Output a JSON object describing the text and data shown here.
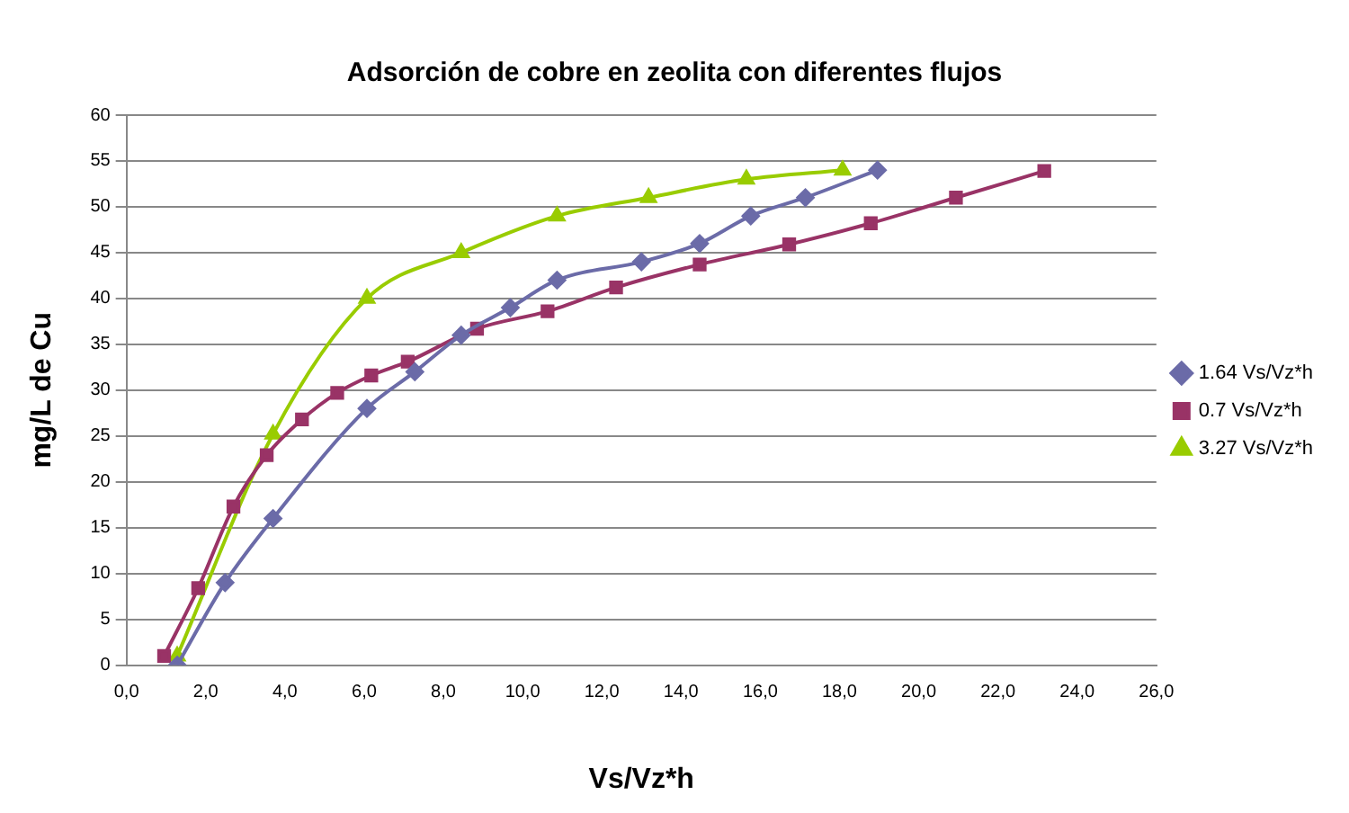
{
  "chart_data": {
    "type": "line",
    "title": "Adsorción de cobre en zeolita con diferentes flujos",
    "xlabel": "Vs/Vz*h",
    "ylabel": "mg/L de Cu",
    "xlim": [
      0,
      26
    ],
    "xticks": [
      {
        "value": 0,
        "label": "0,0"
      },
      {
        "value": 2,
        "label": "2,0"
      },
      {
        "value": 4,
        "label": "4,0"
      },
      {
        "value": 6,
        "label": "6,0"
      },
      {
        "value": 8,
        "label": "8,0"
      },
      {
        "value": 10,
        "label": "10,0"
      },
      {
        "value": 12,
        "label": "12,0"
      },
      {
        "value": 14,
        "label": "14,0"
      },
      {
        "value": 16,
        "label": "16,0"
      },
      {
        "value": 18,
        "label": "18,0"
      },
      {
        "value": 20,
        "label": "20,0"
      },
      {
        "value": 22,
        "label": "22,0"
      },
      {
        "value": 24,
        "label": "24,0"
      },
      {
        "value": 26,
        "label": "26,0"
      }
    ],
    "ylim": [
      0,
      60
    ],
    "yticks": [
      0,
      5,
      10,
      15,
      20,
      25,
      30,
      35,
      40,
      45,
      50,
      55,
      60
    ],
    "grid": "y",
    "legend": "right",
    "series": [
      {
        "name": "1.64 Vs/Vz*h",
        "color": "#6b6ba8",
        "marker": "diamond",
        "x": [
          1.28,
          2.49,
          3.7,
          6.07,
          7.28,
          8.45,
          9.69,
          10.87,
          13.0,
          14.47,
          15.76,
          17.14,
          18.96
        ],
        "values": [
          0,
          9,
          16,
          28,
          32,
          36,
          39,
          42,
          44,
          46,
          49,
          51,
          54
        ]
      },
      {
        "name": "0.7 Vs/Vz*h",
        "color": "#993366",
        "marker": "square",
        "x": [
          0.95,
          1.81,
          2.7,
          3.54,
          4.43,
          5.32,
          6.18,
          7.1,
          8.85,
          10.63,
          12.36,
          14.47,
          16.73,
          18.79,
          20.94,
          23.17
        ],
        "values": [
          1,
          8.4,
          17.3,
          22.9,
          26.8,
          29.7,
          31.6,
          33.1,
          36.7,
          38.6,
          41.2,
          43.7,
          45.9,
          48.2,
          51,
          53.9
        ]
      },
      {
        "name": "3.27 Vs/Vz*h",
        "color": "#99cc00",
        "marker": "triangle",
        "x": [
          1.28,
          3.7,
          6.07,
          8.45,
          10.87,
          13.18,
          15.65,
          18.08
        ],
        "values": [
          1,
          25.2,
          40,
          45,
          49,
          51,
          53,
          54
        ]
      }
    ]
  }
}
